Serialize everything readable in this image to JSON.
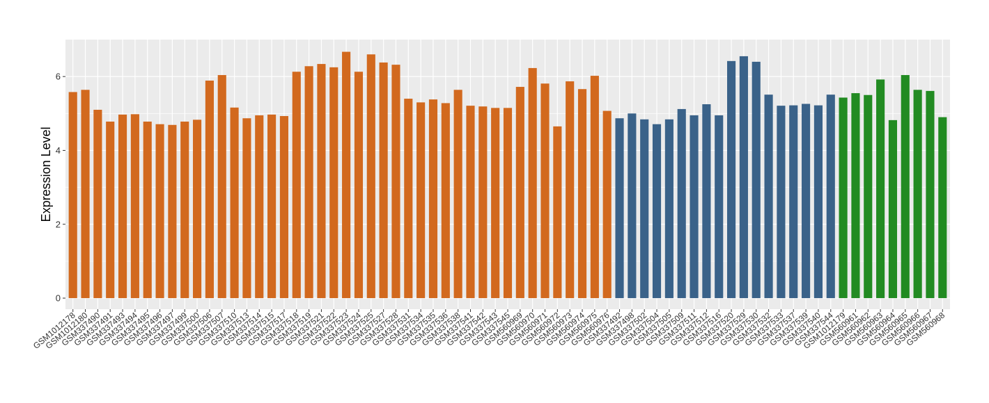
{
  "chart_data": {
    "type": "bar",
    "ylabel": "Expression Level",
    "xlabel": "",
    "ylim": [
      -0.3,
      7.0
    ],
    "yticks": [
      0,
      2,
      4,
      6
    ],
    "grid": true,
    "legend": "none",
    "colors": {
      "orange": "#D2691E",
      "blue": "#3A6289",
      "green": "#228B22",
      "panel": "#EBEBEB",
      "grid_major": "#FFFFFF"
    },
    "categories": [
      "GSM1012178",
      "GSM1012180",
      "GSM337490",
      "GSM337491",
      "GSM337493",
      "GSM337494",
      "GSM337495",
      "GSM337496",
      "GSM337497",
      "GSM337499",
      "GSM337500",
      "GSM337506",
      "GSM337507",
      "GSM337510",
      "GSM337513",
      "GSM337514",
      "GSM337515",
      "GSM337517",
      "GSM337518",
      "GSM337519",
      "GSM337521",
      "GSM337522",
      "GSM337523",
      "GSM337524",
      "GSM337525",
      "GSM337527",
      "GSM337528",
      "GSM337531",
      "GSM337534",
      "GSM337535",
      "GSM337536",
      "GSM337538",
      "GSM337541",
      "GSM337542",
      "GSM337543",
      "GSM337545",
      "GSM560969",
      "GSM560970",
      "GSM560971",
      "GSM560972",
      "GSM560973",
      "GSM560974",
      "GSM560975",
      "GSM560976",
      "GSM337492",
      "GSM337498",
      "GSM337502",
      "GSM337504",
      "GSM337505",
      "GSM337509",
      "GSM337511",
      "GSM337512",
      "GSM337516",
      "GSM337520",
      "GSM337529",
      "GSM337530",
      "GSM337532",
      "GSM337533",
      "GSM337537",
      "GSM337539",
      "GSM337540",
      "GSM337544",
      "GSM1012179",
      "GSM560961",
      "GSM560962",
      "GSM560963",
      "GSM560964",
      "GSM560965",
      "GSM560966",
      "GSM560967",
      "GSM560968"
    ],
    "values": [
      5.58,
      5.64,
      5.1,
      4.78,
      4.97,
      4.98,
      4.78,
      4.71,
      4.69,
      4.78,
      4.83,
      5.89,
      6.04,
      5.16,
      4.87,
      4.95,
      4.97,
      4.93,
      6.13,
      6.28,
      6.34,
      6.25,
      6.67,
      6.13,
      6.6,
      6.38,
      6.32,
      5.4,
      5.3,
      5.38,
      5.28,
      5.64,
      5.21,
      5.19,
      5.15,
      5.15,
      5.72,
      6.23,
      5.81,
      4.65,
      5.87,
      5.66,
      6.02,
      5.07,
      4.87,
      5.0,
      4.84,
      4.71,
      4.84,
      5.12,
      4.95,
      5.25,
      4.95,
      6.42,
      6.55,
      6.4,
      5.51,
      5.21,
      5.22,
      5.26,
      5.22,
      5.51,
      5.43,
      5.55,
      5.5,
      5.92,
      4.82,
      6.04,
      5.64,
      5.61,
      4.9
    ],
    "bar_colors": [
      "orange",
      "orange",
      "orange",
      "orange",
      "orange",
      "orange",
      "orange",
      "orange",
      "orange",
      "orange",
      "orange",
      "orange",
      "orange",
      "orange",
      "orange",
      "orange",
      "orange",
      "orange",
      "orange",
      "orange",
      "orange",
      "orange",
      "orange",
      "orange",
      "orange",
      "orange",
      "orange",
      "orange",
      "orange",
      "orange",
      "orange",
      "orange",
      "orange",
      "orange",
      "orange",
      "orange",
      "orange",
      "orange",
      "orange",
      "orange",
      "orange",
      "orange",
      "orange",
      "orange",
      "blue",
      "blue",
      "blue",
      "blue",
      "blue",
      "blue",
      "blue",
      "blue",
      "blue",
      "blue",
      "blue",
      "blue",
      "blue",
      "blue",
      "blue",
      "blue",
      "blue",
      "blue",
      "green",
      "green",
      "green",
      "green",
      "green",
      "green",
      "green",
      "green",
      "green"
    ]
  }
}
